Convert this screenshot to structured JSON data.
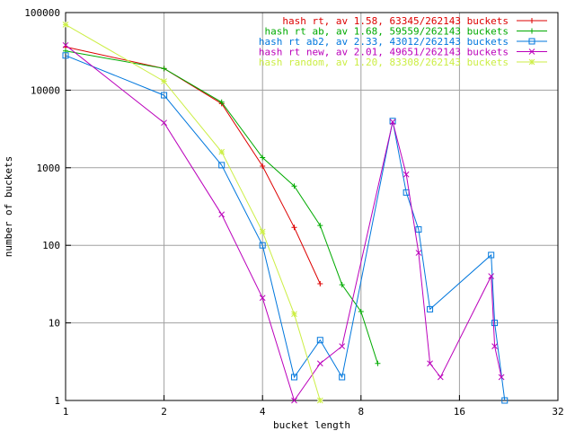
{
  "chart_data": {
    "type": "line",
    "xlabel": "bucket length",
    "ylabel": "number of buckets",
    "x_scale": "log2",
    "y_scale": "log10",
    "xlim": [
      1,
      32
    ],
    "ylim": [
      1,
      100000
    ],
    "x_ticks": [
      1,
      2,
      4,
      8,
      16,
      32
    ],
    "x_tick_labels": [
      "1",
      "2",
      "4",
      "8",
      "16",
      "32"
    ],
    "y_ticks": [
      1,
      10,
      100,
      1000,
      10000,
      100000
    ],
    "y_tick_labels": [
      "1",
      "10",
      "100",
      "1000",
      "10000",
      "100000"
    ],
    "grid": true,
    "legend_position": "top-right",
    "series": [
      {
        "name": "hash rt, av 1.58, 63345/262143 buckets",
        "color": "#dd0000",
        "marker": "plus",
        "x": [
          1,
          2,
          3,
          4,
          5,
          6
        ],
        "y": [
          36000,
          19000,
          6700,
          1050,
          170,
          32
        ]
      },
      {
        "name": "hash rt ab, av 1.68, 59559/262143 buckets",
        "color": "#00aa00",
        "marker": "plus",
        "x": [
          1,
          2,
          3,
          4,
          5,
          6,
          7,
          8,
          9
        ],
        "y": [
          32000,
          19000,
          7000,
          1350,
          580,
          180,
          31,
          14,
          3
        ]
      },
      {
        "name": "hash rt ab2, av 2.33, 43012/262143 buckets",
        "color": "#0077dd",
        "marker": "square",
        "x": [
          1,
          2,
          3,
          4,
          5,
          6,
          7,
          10,
          11,
          12,
          13,
          20,
          20.5,
          22
        ],
        "y": [
          28000,
          8600,
          1080,
          100,
          2,
          6,
          2,
          4000,
          480,
          160,
          15,
          75,
          10,
          1
        ]
      },
      {
        "name": "hash rt new, av 2.01, 49651/262143 buckets",
        "color": "#bb00bb",
        "marker": "x",
        "x": [
          1,
          2,
          3,
          4,
          5,
          6,
          7,
          10,
          11,
          12,
          13,
          14,
          20,
          20.5,
          21.5
        ],
        "y": [
          38000,
          3800,
          250,
          21,
          1,
          3,
          5,
          3900,
          820,
          80,
          3,
          2,
          40,
          5,
          2
        ]
      },
      {
        "name": "hash random, av 1.20, 83308/262143 buckets",
        "color": "#ccee44",
        "marker": "star",
        "x": [
          1,
          2,
          3,
          4,
          5,
          6
        ],
        "y": [
          70000,
          13000,
          1600,
          150,
          13,
          1
        ]
      }
    ]
  }
}
